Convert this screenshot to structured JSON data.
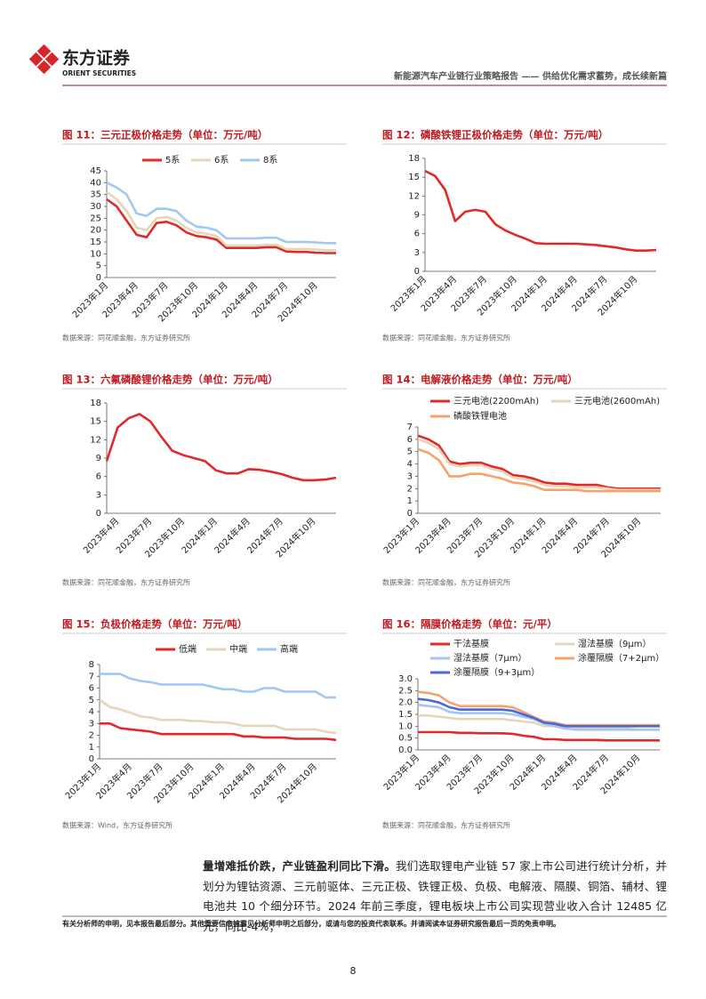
{
  "header": {
    "logo_cn": "东方证券",
    "logo_en": "ORIENT SECURITIES",
    "report_title": "新能源汽车产业链行业策略报告 —— 供给优化需求蓄势，成长续新篇"
  },
  "chart_data": [
    {
      "type": "line",
      "title": "图 11：三元正极价格走势（单位：万元/吨）",
      "categories": [
        "2023年1月",
        null,
        null,
        "2023年4月",
        null,
        null,
        "2023年7月",
        null,
        null,
        "2023年10月",
        null,
        null,
        "2024年1月",
        null,
        null,
        "2024年4月",
        null,
        null,
        "2024年7月",
        null,
        null,
        "2024年10月",
        null,
        null
      ],
      "series": [
        {
          "name": "5系",
          "color": "#e02a2a",
          "values": [
            33,
            30,
            24,
            18,
            17,
            23,
            23.5,
            22,
            19,
            17.5,
            17,
            16,
            12.5,
            12.5,
            12.5,
            12.5,
            12.8,
            12.8,
            11,
            10.8,
            10.8,
            10.5,
            10.3,
            10.3
          ]
        },
        {
          "name": "6系",
          "color": "#e6d5b8",
          "values": [
            36,
            33,
            28,
            21,
            20,
            25,
            25.5,
            24,
            21,
            19,
            18.5,
            17.5,
            13.5,
            13.5,
            13.5,
            13.5,
            13.8,
            13.8,
            12,
            12,
            12,
            11.8,
            11.5,
            11.5
          ]
        },
        {
          "name": "8系",
          "color": "#a3c6f2",
          "values": [
            40,
            38,
            35,
            27,
            26,
            29,
            29,
            28,
            24,
            21.5,
            21,
            20,
            16.5,
            16.5,
            16.5,
            16.5,
            16.8,
            16.8,
            15,
            15,
            15,
            14.8,
            14.5,
            14.5
          ]
        }
      ],
      "ylim": [
        0,
        45
      ],
      "yticks": [
        0,
        5,
        10,
        15,
        20,
        25,
        30,
        35,
        40,
        45
      ],
      "source": "数据来源：同花顺金融，东方证券研究所"
    },
    {
      "type": "line",
      "title": "图 12：磷酸铁锂正极价格走势（单位：万元/吨）",
      "categories": [
        "2023年1月",
        null,
        null,
        "2023年4月",
        null,
        null,
        "2023年7月",
        null,
        null,
        "2023年10月",
        null,
        null,
        "2024年1月",
        null,
        null,
        "2024年4月",
        null,
        null,
        "2024年7月",
        null,
        null,
        "2024年10月",
        null,
        null
      ],
      "values": [
        16,
        15.2,
        13,
        8,
        9.5,
        9.8,
        9.5,
        7.5,
        6.5,
        5.8,
        5.2,
        4.5,
        4.4,
        4.4,
        4.4,
        4.4,
        4.3,
        4.2,
        4,
        3.8,
        3.5,
        3.3,
        3.3,
        3.4
      ],
      "color": "#e02a2a",
      "ylim": [
        0,
        18
      ],
      "yticks": [
        0,
        3,
        6,
        9,
        12,
        15,
        18
      ],
      "source": "数据来源：同花顺金融，东方证券研究所"
    },
    {
      "type": "line",
      "title": "图 13：六氟磷酸锂价格走势（单位：万元/吨）",
      "categories": [
        null,
        "2023年4月",
        null,
        null,
        "2023年7月",
        null,
        null,
        "2023年10月",
        null,
        null,
        "2024年1月",
        null,
        null,
        "2024年4月",
        null,
        null,
        "2024年7月",
        null,
        null,
        "2024年10月",
        null,
        null
      ],
      "values": [
        8.5,
        14,
        15.5,
        16.2,
        15,
        12.5,
        10.2,
        9.5,
        9,
        8.5,
        7,
        6.5,
        6.5,
        7.2,
        7.1,
        6.8,
        6.4,
        5.8,
        5.4,
        5.4,
        5.5,
        5.8
      ],
      "color": "#e02a2a",
      "ylim": [
        0,
        18
      ],
      "yticks": [
        0,
        3,
        6,
        9,
        12,
        15,
        18
      ],
      "source": "数据来源：同花顺金融，东方证券研究所"
    },
    {
      "type": "line",
      "title": "图 14：电解液价格走势（单位：万元/吨）",
      "categories": [
        "2023年1月",
        null,
        null,
        "2023年4月",
        null,
        null,
        "2023年7月",
        null,
        null,
        "2023年10月",
        null,
        null,
        "2024年1月",
        null,
        null,
        "2024年4月",
        null,
        null,
        "2024年7月",
        null,
        null,
        "2024年10月",
        null,
        null
      ],
      "series": [
        {
          "name": "三元电池(2200mAh)",
          "color": "#e02a2a",
          "values": [
            6.3,
            6,
            5.5,
            4.2,
            4,
            4.1,
            4.1,
            3.8,
            3.6,
            3.1,
            3,
            2.8,
            2.5,
            2.4,
            2.4,
            2.3,
            2.3,
            2.3,
            2.1,
            2,
            2,
            2,
            2,
            2
          ]
        },
        {
          "name": "三元电池(2600mAh)",
          "color": "#e6d5b8",
          "values": [
            6,
            5.7,
            5.2,
            4,
            3.8,
            3.9,
            3.9,
            3.6,
            3.4,
            2.9,
            2.8,
            2.6,
            2.3,
            2.2,
            2.2,
            2.1,
            2.1,
            2.1,
            2,
            1.9,
            1.9,
            1.9,
            1.9,
            1.9
          ]
        },
        {
          "name": "磷酸铁锂电池",
          "color": "#f5a36a",
          "values": [
            5.2,
            4.9,
            4.3,
            3,
            3,
            3.2,
            3.2,
            3,
            2.8,
            2.5,
            2.4,
            2.2,
            1.9,
            1.9,
            1.9,
            1.9,
            1.8,
            1.8,
            1.8,
            1.8,
            1.8,
            1.8,
            1.8,
            1.8
          ]
        }
      ],
      "ylim": [
        0,
        7
      ],
      "yticks": [
        0,
        1,
        2,
        3,
        4,
        5,
        6,
        7
      ],
      "source": "数据来源：同花顺金融，东方证券研究所"
    },
    {
      "type": "line",
      "title": "图 15：负极价格走势（单位：万元/吨）",
      "categories": [
        "2023年1月",
        null,
        null,
        "2023年4月",
        null,
        null,
        "2023年7月",
        null,
        null,
        "2023年10月",
        null,
        null,
        "2024年1月",
        null,
        null,
        "2024年4月",
        null,
        null,
        "2024年7月",
        null,
        null,
        "2024年10月",
        null,
        null
      ],
      "series": [
        {
          "name": "低端",
          "color": "#e02a2a",
          "values": [
            3,
            3,
            2.6,
            2.5,
            2.4,
            2.3,
            2.1,
            2.1,
            2.1,
            2.1,
            2.1,
            2.1,
            2.1,
            2.1,
            1.9,
            1.9,
            1.8,
            1.8,
            1.8,
            1.7,
            1.7,
            1.7,
            1.7,
            1.6
          ]
        },
        {
          "name": "中端",
          "color": "#e6d5b8",
          "values": [
            5,
            4.4,
            4.2,
            3.9,
            3.6,
            3.5,
            3.3,
            3.3,
            3.3,
            3.2,
            3.2,
            3.1,
            3.1,
            3,
            2.8,
            2.8,
            2.8,
            2.8,
            2.5,
            2.5,
            2.5,
            2.5,
            2.3,
            2.2
          ]
        },
        {
          "name": "高端",
          "color": "#a3c6f2",
          "values": [
            7.2,
            7.2,
            7.2,
            6.8,
            6.6,
            6.5,
            6.3,
            6.3,
            6.3,
            6.3,
            6.3,
            6.1,
            5.9,
            5.9,
            5.7,
            5.7,
            6,
            6,
            5.7,
            5.7,
            5.7,
            5.7,
            5.2,
            5.2
          ]
        }
      ],
      "ylim": [
        0,
        8
      ],
      "yticks": [
        0,
        1,
        2,
        3,
        4,
        5,
        6,
        7,
        8
      ],
      "source": "数据来源：Wind，东方证券研究所"
    },
    {
      "type": "line",
      "title": "图 16：隔膜价格走势（单位：元/平）",
      "categories": [
        "2023年1月",
        null,
        null,
        "2023年4月",
        null,
        null,
        "2023年7月",
        null,
        null,
        "2023年10月",
        null,
        null,
        "2024年1月",
        null,
        null,
        "2024年4月",
        null,
        null,
        "2024年7月",
        null,
        null,
        "2024年10月",
        null,
        null
      ],
      "series": [
        {
          "name": "干法基膜",
          "color": "#e02a2a",
          "values": [
            0.75,
            0.75,
            0.75,
            0.75,
            0.72,
            0.72,
            0.7,
            0.7,
            0.7,
            0.68,
            0.6,
            0.55,
            0.45,
            0.45,
            0.42,
            0.42,
            0.42,
            0.42,
            0.4,
            0.4,
            0.4,
            0.4,
            0.4,
            0.4
          ]
        },
        {
          "name": "湿法基膜（9μm）",
          "color": "#e6d5b8",
          "values": [
            1.45,
            1.45,
            1.4,
            1.35,
            1.3,
            1.3,
            1.3,
            1.3,
            1.3,
            1.25,
            1.2,
            1.15,
            1,
            1,
            0.95,
            0.95,
            0.95,
            0.95,
            0.95,
            0.95,
            0.95,
            1,
            1,
            1
          ]
        },
        {
          "name": "湿法基膜（7μm）",
          "color": "#a3c6f2",
          "values": [
            1.9,
            1.85,
            1.8,
            1.6,
            1.55,
            1.55,
            1.55,
            1.55,
            1.55,
            1.5,
            1.4,
            1.3,
            1.1,
            1,
            0.9,
            0.85,
            0.85,
            0.85,
            0.85,
            0.85,
            0.85,
            0.85,
            0.85,
            0.85
          ]
        },
        {
          "name": "涂覆隔膜（7+2μm）",
          "color": "#f5a36a",
          "values": [
            2.45,
            2.4,
            2.3,
            2,
            1.85,
            1.85,
            1.85,
            1.85,
            1.85,
            1.8,
            1.6,
            1.4,
            1.2,
            1.15,
            1.05,
            1.05,
            1.05,
            1.05,
            1.05,
            1.05,
            1.05,
            1.05,
            1.05,
            1.05
          ]
        },
        {
          "name": "涂覆隔膜（9+3μm）",
          "color": "#4a68dc",
          "values": [
            2.15,
            2.1,
            2,
            1.8,
            1.7,
            1.7,
            1.7,
            1.7,
            1.7,
            1.65,
            1.5,
            1.35,
            1.15,
            1.1,
            1,
            1,
            1,
            1,
            1,
            1,
            1,
            1,
            1,
            1
          ]
        }
      ],
      "ylim": [
        0,
        3
      ],
      "yticks": [
        {
          "value": 0,
          "label": "0.0"
        },
        0.5,
        {
          "value": 1,
          "label": "1.0"
        },
        1.5,
        {
          "value": 2,
          "label": "2.0"
        },
        2.5,
        {
          "value": 3,
          "label": "3.0"
        }
      ],
      "source": "数据来源：同花顺金融，东方证券研究所"
    }
  ],
  "body": {
    "lead": "量增难抵价跌，产业链盈利同比下滑。",
    "text": "我们选取锂电产业链 57 家上市公司进行统计分析，并划分为锂钴资源、三元前驱体、三元正极、铁锂正极、负极、电解液、隔膜、铜箔、辅材、锂电池共 10 个细分环节。2024 年前三季度，锂电板块上市公司实现营业收入合计 12485 亿元，同比-4%；"
  },
  "footer": {
    "disclaimer": "有关分析师的申明，见本报告最后部分。其他重要信息披露见分析师申明之后部分，或请与您的投资代表联系。并请阅读本证券研究报告最后一页的免责申明。",
    "page": "8"
  }
}
